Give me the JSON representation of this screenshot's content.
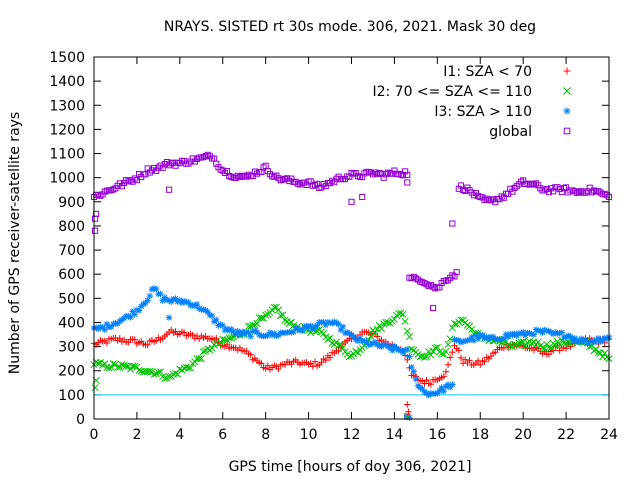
{
  "chart_data": {
    "type": "scatter",
    "title": "NRAYS. SISTED rt 30s mode. 306, 2021. Mask 30 deg",
    "xlabel": "GPS time [hours of doy 306, 2021]",
    "ylabel": "Number of GPS receiver-satellite rays",
    "xlim": [
      0,
      24
    ],
    "ylim": [
      0,
      1500
    ],
    "xticks": [
      "0",
      "2",
      "4",
      "6",
      "8",
      "10",
      "12",
      "14",
      "16",
      "18",
      "20",
      "22",
      "24"
    ],
    "yticks": [
      "0",
      "100",
      "200",
      "300",
      "400",
      "500",
      "600",
      "700",
      "800",
      "900",
      "1000",
      "1100",
      "1200",
      "1300",
      "1400",
      "1500"
    ],
    "legend_position": "top-right",
    "threshold_line": {
      "y": 100,
      "color": "#00c8ff"
    },
    "series": [
      {
        "name": "I1: SZA < 70",
        "symbol": "+",
        "color": "#ff0000",
        "x": [
          0,
          0.5,
          1,
          1.5,
          2,
          2.5,
          3,
          3.5,
          4,
          4.5,
          5,
          5.5,
          6,
          6.5,
          7,
          7.5,
          8,
          8.5,
          9,
          9.5,
          10,
          10.5,
          11,
          11.5,
          12,
          12.5,
          13,
          13.5,
          14,
          14.4,
          14.8,
          15.2,
          15.6,
          16,
          16.4,
          16.8,
          17.2,
          17.6,
          18,
          18.5,
          19,
          19.5,
          20,
          20.5,
          21,
          21.5,
          22,
          22.5,
          23,
          23.5,
          24
        ],
        "values": [
          310,
          320,
          330,
          325,
          320,
          310,
          330,
          360,
          355,
          345,
          340,
          335,
          310,
          300,
          280,
          250,
          210,
          215,
          230,
          235,
          225,
          230,
          260,
          300,
          330,
          360,
          350,
          320,
          300,
          290,
          180,
          160,
          150,
          170,
          190,
          310,
          240,
          230,
          230,
          260,
          300,
          310,
          300,
          290,
          270,
          290,
          300,
          310,
          330,
          320,
          330
        ]
      },
      {
        "name": "I2: 70 <= SZA <= 110",
        "symbol": "×",
        "color": "#00c000",
        "x": [
          0,
          0.5,
          1,
          1.5,
          2,
          2.5,
          3,
          3.5,
          4,
          4.5,
          5,
          5.5,
          6,
          6.5,
          7,
          7.5,
          8,
          8.5,
          9,
          9.5,
          10,
          10.5,
          11,
          11.5,
          12,
          12.5,
          13,
          13.5,
          14,
          14.4,
          14.8,
          15.2,
          15.6,
          16,
          16.4,
          16.8,
          17.2,
          17.6,
          18,
          18.5,
          19,
          19.5,
          20,
          20.5,
          21,
          21.5,
          22,
          22.5,
          23,
          23.5,
          24
        ],
        "values": [
          230,
          220,
          220,
          215,
          210,
          200,
          190,
          170,
          200,
          220,
          260,
          300,
          320,
          340,
          360,
          400,
          420,
          460,
          400,
          380,
          370,
          360,
          330,
          300,
          260,
          300,
          360,
          390,
          420,
          440,
          300,
          260,
          270,
          290,
          270,
          400,
          410,
          370,
          340,
          330,
          320,
          300,
          310,
          320,
          300,
          310,
          320,
          320,
          310,
          280,
          250
        ]
      },
      {
        "name": "I3: SZA > 110",
        "symbol": "✳",
        "color": "#0080ff",
        "x": [
          0,
          0.5,
          1,
          1.5,
          2,
          2.5,
          2.8,
          3.2,
          3.6,
          4,
          4.5,
          5,
          5.5,
          6,
          6.5,
          7,
          7.5,
          8,
          8.5,
          9,
          9.5,
          10,
          10.5,
          11,
          11.5,
          12,
          12.5,
          13,
          13.5,
          14,
          14.6,
          15,
          15.4,
          15.8,
          16.2,
          16.6,
          17,
          17.5,
          18,
          18.5,
          19,
          19.5,
          20,
          20.5,
          21,
          21.5,
          22,
          22.5,
          23,
          23.5,
          24
        ],
        "values": [
          370,
          380,
          400,
          420,
          450,
          500,
          540,
          500,
          490,
          490,
          480,
          460,
          420,
          380,
          360,
          350,
          355,
          350,
          350,
          360,
          370,
          380,
          390,
          400,
          380,
          340,
          320,
          310,
          300,
          290,
          280,
          160,
          110,
          105,
          120,
          140,
          320,
          330,
          340,
          330,
          340,
          350,
          350,
          360,
          360,
          350,
          350,
          330,
          320,
          330,
          340
        ]
      },
      {
        "name": "global",
        "symbol": "□",
        "color": "#9400d3",
        "x": [
          0,
          0.5,
          1,
          1.5,
          2,
          2.5,
          3,
          3.5,
          4,
          4.5,
          5,
          5.5,
          6,
          6.5,
          7,
          7.5,
          8,
          8.5,
          9,
          9.5,
          10,
          10.5,
          11,
          11.5,
          12,
          12.5,
          13,
          13.5,
          14,
          14.6,
          14.8,
          15.2,
          15.6,
          16,
          16.4,
          16.8,
          17.2,
          17.6,
          18,
          18.5,
          19,
          19.5,
          20,
          20.5,
          21,
          21.5,
          22,
          22.5,
          23,
          23.5,
          24
        ],
        "values": [
          920,
          940,
          960,
          980,
          1000,
          1030,
          1040,
          1060,
          1060,
          1070,
          1080,
          1090,
          1030,
          1010,
          1000,
          1020,
          1040,
          1000,
          990,
          980,
          980,
          960,
          980,
          1000,
          1010,
          1010,
          1020,
          1010,
          1020,
          1020,
          580,
          580,
          560,
          540,
          580,
          600,
          960,
          940,
          910,
          900,
          920,
          950,
          980,
          970,
          950,
          950,
          950,
          940,
          950,
          940,
          920
        ]
      }
    ],
    "outliers": [
      {
        "series": "global",
        "x": [
          0.05,
          0.05,
          0.1,
          3.5,
          12,
          12.5,
          14.6,
          15.8,
          16.7,
          14.6
        ],
        "values": [
          780,
          830,
          850,
          950,
          900,
          920,
          980,
          460,
          810,
          10
        ]
      },
      {
        "series": "I3: SZA > 110",
        "x": [
          3.5,
          14.6,
          14.7
        ],
        "values": [
          420,
          10,
          5
        ]
      },
      {
        "series": "I2: 70 <= SZA <= 110",
        "x": [
          0.05,
          0.1,
          14.6
        ],
        "values": [
          130,
          160,
          10
        ]
      },
      {
        "series": "I1: SZA < 70",
        "x": [
          14.6,
          14.65
        ],
        "values": [
          60,
          30
        ]
      }
    ]
  }
}
